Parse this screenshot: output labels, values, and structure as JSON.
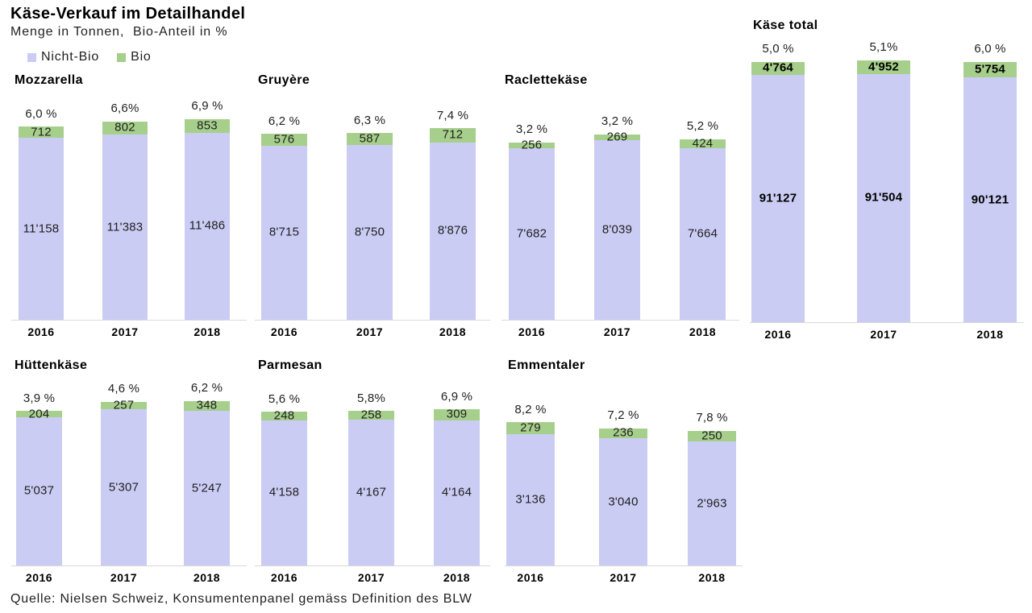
{
  "page": {
    "title": "Käse-Verkauf im Detailhandel",
    "subtitle": "Menge in Tonnen,  Bio-Anteil in %",
    "source": "Quelle: Nielsen Schweiz, Konsumentenpanel gemäss Definition des BLW"
  },
  "legend": {
    "items": [
      {
        "label": "Nicht-Bio",
        "color": "#cbccf4"
      },
      {
        "label": "Bio",
        "color": "#a7cf8c"
      }
    ]
  },
  "colors": {
    "nicht_bio": "#cbccf4",
    "bio": "#a7cf8c",
    "axis_line": "#d9d9d9",
    "text": "#1f1f1f"
  },
  "chart_data": [
    {
      "type": "bar",
      "stacked": true,
      "title": "Mozzarella",
      "categories": [
        "2016",
        "2017",
        "2018"
      ],
      "series": [
        {
          "name": "Nicht-Bio",
          "values": [
            11158,
            11383,
            11486
          ]
        },
        {
          "name": "Bio",
          "values": [
            712,
            802,
            853
          ]
        }
      ],
      "nicht_bio_value_labels": [
        "11'158",
        "11'383",
        "11'486"
      ],
      "bio_value_labels": [
        "712",
        "802",
        "853"
      ],
      "pct_labels": [
        "6,0 %",
        "6,6%",
        "6,9 %"
      ],
      "ylim": [
        0,
        14000
      ],
      "grid": false,
      "legend_position": "none"
    },
    {
      "type": "bar",
      "stacked": true,
      "title": "Gruyère",
      "categories": [
        "2016",
        "2017",
        "2018"
      ],
      "series": [
        {
          "name": "Nicht-Bio",
          "values": [
            8715,
            8750,
            8876
          ]
        },
        {
          "name": "Bio",
          "values": [
            576,
            587,
            712
          ]
        }
      ],
      "nicht_bio_value_labels": [
        "8'715",
        "8'750",
        "8'876"
      ],
      "bio_value_labels": [
        "576",
        "587",
        "712"
      ],
      "pct_labels": [
        "6,2 %",
        "6,3 %",
        "7,4 %"
      ],
      "ylim": [
        0,
        11400
      ],
      "grid": false,
      "legend_position": "none"
    },
    {
      "type": "bar",
      "stacked": true,
      "title": "Raclettekäse",
      "categories": [
        "2016",
        "2017",
        "2018"
      ],
      "series": [
        {
          "name": "Nicht-Bio",
          "values": [
            7682,
            8039,
            7664
          ]
        },
        {
          "name": "Bio",
          "values": [
            256,
            269,
            424
          ]
        }
      ],
      "nicht_bio_value_labels": [
        "7'682",
        "8'039",
        "7'664"
      ],
      "bio_value_labels": [
        "256",
        "269",
        "424"
      ],
      "pct_labels": [
        "3,2 %",
        "3,2 %",
        "5,2 %"
      ],
      "ylim": [
        0,
        10200
      ],
      "grid": false,
      "legend_position": "none"
    },
    {
      "type": "bar",
      "stacked": true,
      "title": "Käse total",
      "categories": [
        "2016",
        "2017",
        "2018"
      ],
      "series": [
        {
          "name": "Nicht-Bio",
          "values": [
            91127,
            91504,
            90121
          ]
        },
        {
          "name": "Bio",
          "values": [
            4764,
            4952,
            5754
          ]
        }
      ],
      "nicht_bio_value_labels": [
        "91'127",
        "91'504",
        "90'121"
      ],
      "bio_value_labels": [
        "4'764",
        "4'952",
        "5'754"
      ],
      "pct_labels": [
        "5,0 %",
        "5,1%",
        "6,0 %"
      ],
      "ylim": [
        0,
        105000
      ],
      "grid": false,
      "legend_position": "none"
    },
    {
      "type": "bar",
      "stacked": true,
      "title": "Hüttenkäse",
      "categories": [
        "2016",
        "2017",
        "2018"
      ],
      "series": [
        {
          "name": "Nicht-Bio",
          "values": [
            5037,
            5307,
            5247
          ]
        },
        {
          "name": "Bio",
          "values": [
            204,
            257,
            348
          ]
        }
      ],
      "nicht_bio_value_labels": [
        "5'037",
        "5'307",
        "5'247"
      ],
      "bio_value_labels": [
        "204",
        "257",
        "348"
      ],
      "pct_labels": [
        "3,9 %",
        "4,6 %",
        "6,2 %"
      ],
      "ylim": [
        0,
        6400
      ],
      "grid": false,
      "legend_position": "none"
    },
    {
      "type": "bar",
      "stacked": true,
      "title": "Parmesan",
      "categories": [
        "2016",
        "2017",
        "2018"
      ],
      "series": [
        {
          "name": "Nicht-Bio",
          "values": [
            4158,
            4167,
            4164
          ]
        },
        {
          "name": "Bio",
          "values": [
            248,
            258,
            309
          ]
        }
      ],
      "nicht_bio_value_labels": [
        "4'158",
        "4'167",
        "4'164"
      ],
      "bio_value_labels": [
        "248",
        "258",
        "309"
      ],
      "pct_labels": [
        "5,6 %",
        "5,8%",
        "6,9 %"
      ],
      "ylim": [
        0,
        5400
      ],
      "grid": false,
      "legend_position": "none"
    },
    {
      "type": "bar",
      "stacked": true,
      "title": "Emmentaler",
      "categories": [
        "2016",
        "2017",
        "2018"
      ],
      "series": [
        {
          "name": "Nicht-Bio",
          "values": [
            3136,
            3040,
            2963
          ]
        },
        {
          "name": "Bio",
          "values": [
            279,
            236,
            250
          ]
        }
      ],
      "nicht_bio_value_labels": [
        "3'136",
        "3'040",
        "2'963"
      ],
      "bio_value_labels": [
        "279",
        "236",
        "250"
      ],
      "pct_labels": [
        "8,2 %",
        "7,2 %",
        "7,8 %"
      ],
      "ylim": [
        0,
        4500
      ],
      "grid": false,
      "legend_position": "none"
    }
  ]
}
